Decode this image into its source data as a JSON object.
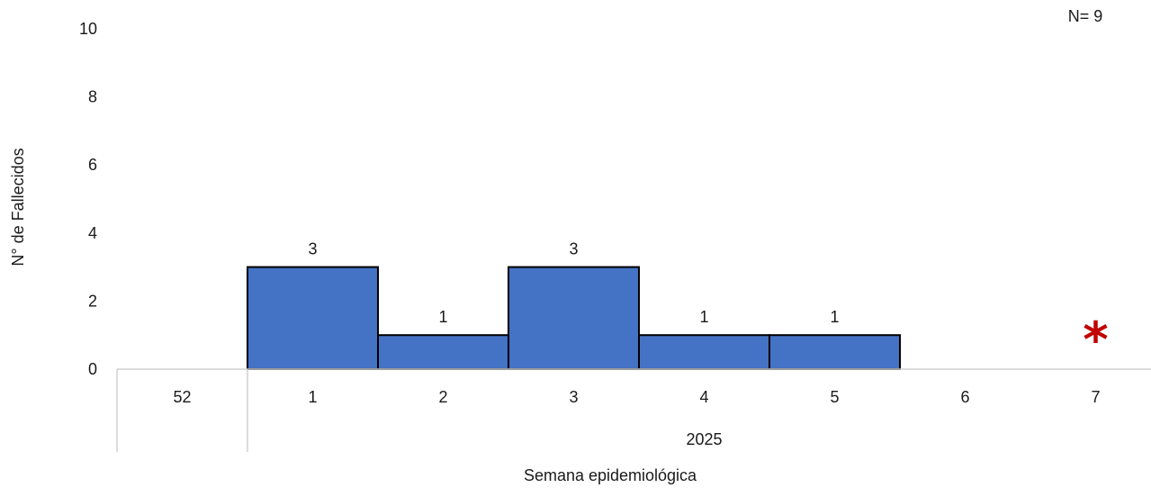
{
  "chart_data": {
    "type": "bar",
    "categories": [
      "52",
      "1",
      "2",
      "3",
      "4",
      "5",
      "6",
      "7"
    ],
    "group_labels": [
      {
        "label": "",
        "categories": [
          "52"
        ]
      },
      {
        "label": "2025",
        "categories": [
          "1",
          "2",
          "3",
          "4",
          "5",
          "6",
          "7"
        ]
      }
    ],
    "values": [
      0,
      3,
      1,
      3,
      1,
      1,
      0,
      0
    ],
    "data_labels": [
      "",
      "3",
      "1",
      "3",
      "1",
      "1",
      "",
      ""
    ],
    "ylabel": "N° de Fallecidos",
    "xlabel": "Semana epidemiológica",
    "ylim": [
      0,
      10
    ],
    "yticks": [
      "0",
      "2",
      "4",
      "6",
      "8",
      "10"
    ],
    "grid": false,
    "legend": "none",
    "annotation": "N= 9",
    "marker_symbol": "*",
    "marker_category": "7",
    "bar_color": "#4472C4",
    "bar_edge_color": "#000000",
    "marker_color": "#C00000"
  }
}
